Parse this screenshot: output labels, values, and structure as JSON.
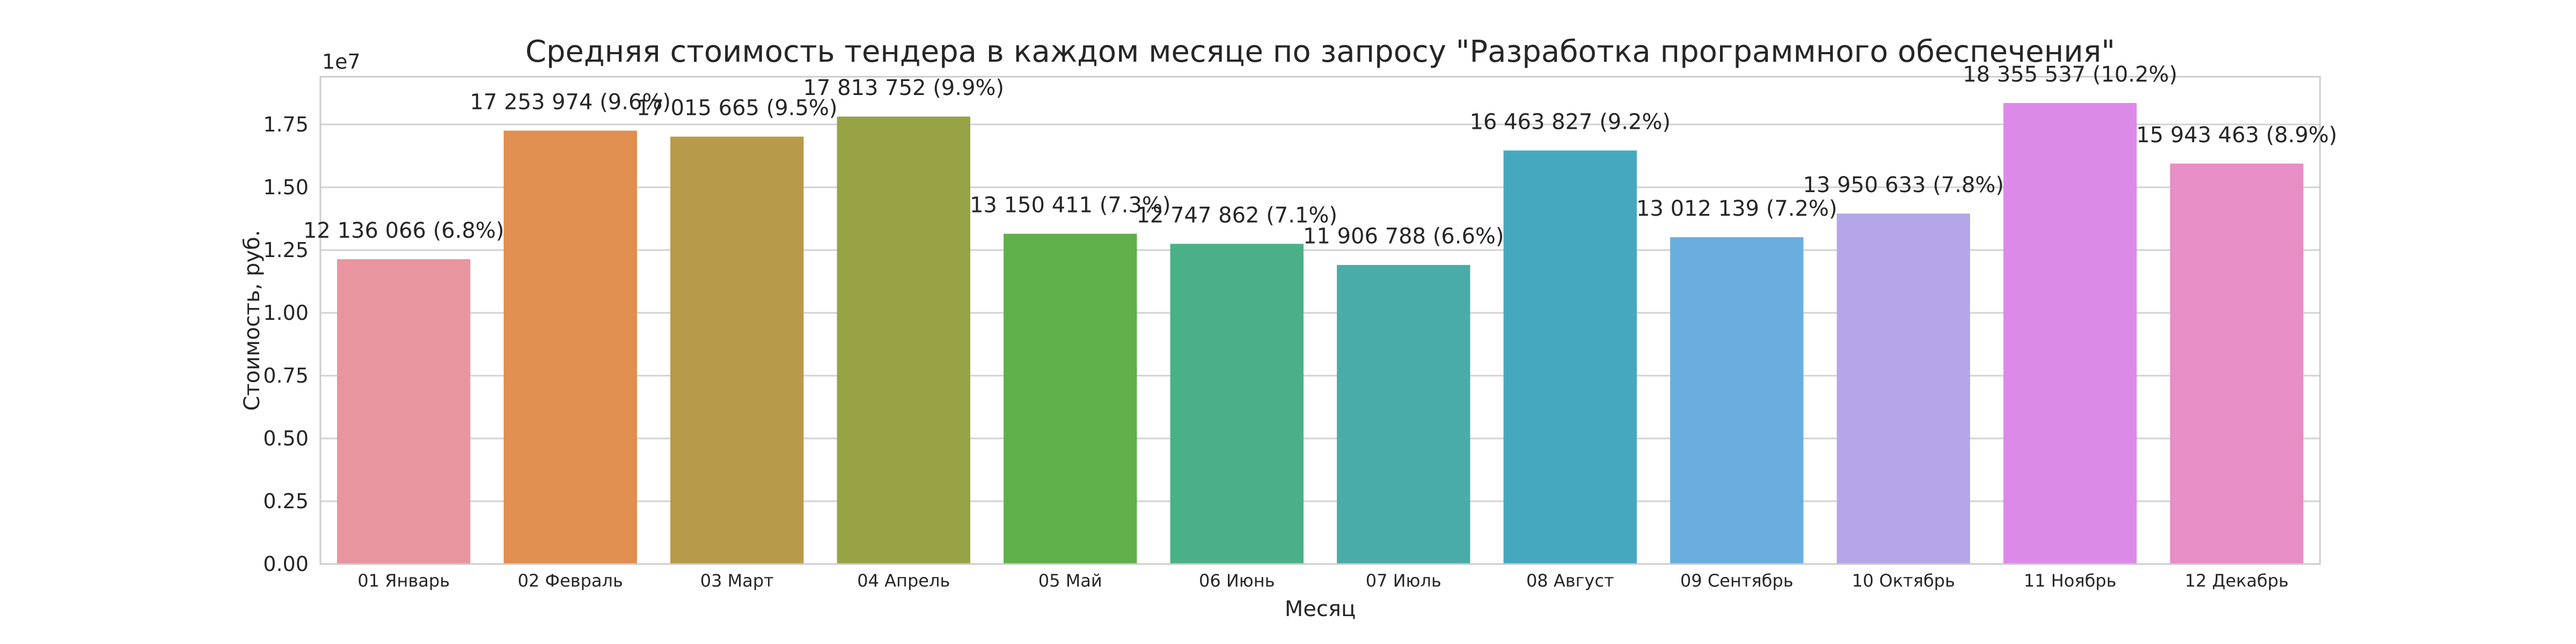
{
  "chart_data": {
    "type": "bar",
    "title": "Средняя стоимость тендера в каждом месяце по запросу \"Разработка программного обеспечения\"",
    "xlabel": "Месяц",
    "ylabel": "Стоимость, руб.",
    "y_offset_text": "1e7",
    "categories": [
      "01 Январь",
      "02 Февраль",
      "03 Март",
      "04 Апрель",
      "05 Май",
      "06 Июнь",
      "07 Июль",
      "08 Август",
      "09 Сентябрь",
      "10 Октябрь",
      "11 Ноябрь",
      "12 Декабрь"
    ],
    "values": [
      12136066,
      17253974,
      17015665,
      17813752,
      13150411,
      12747862,
      11906788,
      16463827,
      13012139,
      13950633,
      18355537,
      15943463
    ],
    "data_labels": [
      "12 136 066 (6.8%)",
      "17 253 974 (9.6%)",
      "17 015 665 (9.5%)",
      "17 813 752 (9.9%)",
      "13 150 411 (7.3%)",
      "12 747 862 (7.1%)",
      "11 906 788 (6.6%)",
      "16 463 827 (9.2%)",
      "13 012 139 (7.2%)",
      "13 950 633 (7.8%)",
      "18 355 537 (10.2%)",
      "15 943 463 (8.9%)"
    ],
    "ylim": [
      0,
      19400000
    ],
    "y_ticks": [
      0,
      2500000,
      5000000,
      7500000,
      10000000,
      12500000,
      15000000,
      17500000
    ],
    "y_tick_labels": [
      "0.00",
      "0.25",
      "0.50",
      "0.75",
      "1.00",
      "1.25",
      "1.50",
      "1.75"
    ],
    "colors": [
      "#e8959f",
      "#e08f50",
      "#b79a4a",
      "#98a345",
      "#5fb04a",
      "#4ab088",
      "#4aaca8",
      "#46a8be",
      "#6aaee0",
      "#b5a6ea",
      "#dc8ae8",
      "#e78ec4"
    ],
    "grid": true,
    "legend": "none"
  }
}
